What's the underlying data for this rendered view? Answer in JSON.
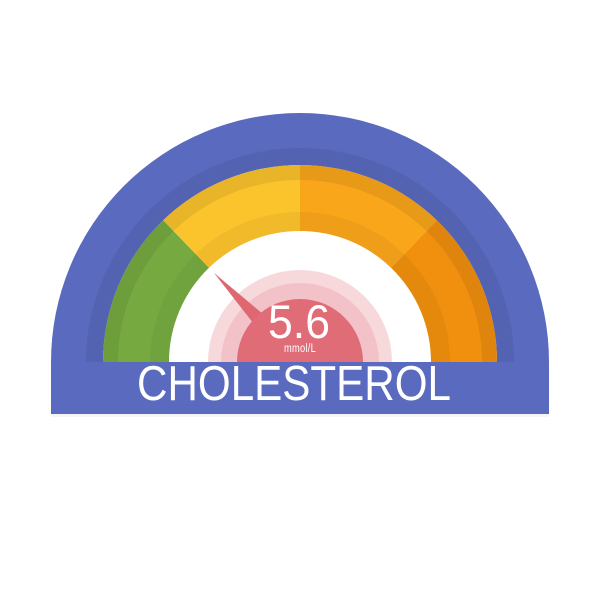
{
  "title": "CHOLESTEROL",
  "reading": {
    "value": "5.6",
    "unit": "mmol/L"
  },
  "colors": {
    "background": "#ffffff",
    "backplate_purple": "#5a6abf",
    "band_purple": "#5a6abf",
    "inner_disc_white": "#ffffff",
    "center_ring_outer_pink": "#f7d9dc",
    "center_ring_inner_pink": "#f2c2c8",
    "center_circle_red": "#e06c77",
    "needle_red": "#de6772",
    "text_white": "#ffffff"
  },
  "chart_data": {
    "type": "gauge",
    "title": "CHOLESTEROL",
    "value": 5.6,
    "unit": "mmol/L",
    "arc_span_deg": [
      180,
      0
    ],
    "needle_angle_deg": 134,
    "segments": [
      {
        "color": "#76aa40",
        "start_deg": 180,
        "end_deg": 134
      },
      {
        "color": "#fbc32c",
        "start_deg": 134,
        "end_deg": 90
      },
      {
        "color": "#f9a61a",
        "start_deg": 90,
        "end_deg": 46
      },
      {
        "color": "#f0900e",
        "start_deg": 46,
        "end_deg": 0
      }
    ]
  }
}
